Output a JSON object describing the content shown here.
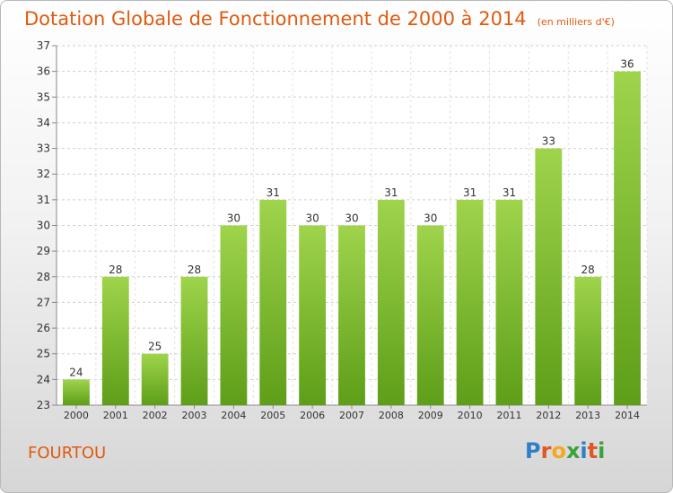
{
  "header": {
    "title": "Dotation Globale de Fonctionnement de 2000 à 2014",
    "unit": "(en milliers d'€)"
  },
  "footer": {
    "place": "FOURTOU",
    "brand": "Proxiti"
  },
  "colors": {
    "title": "#e05a0f",
    "bar_top": "#9fd44c",
    "bar_bottom": "#5e9e18"
  },
  "chart_data": {
    "type": "bar",
    "title": "Dotation Globale de Fonctionnement de 2000 à 2014",
    "ylabel": "(en milliers d'€)",
    "categories": [
      "2000",
      "2001",
      "2002",
      "2003",
      "2004",
      "2005",
      "2006",
      "2007",
      "2008",
      "2009",
      "2010",
      "2011",
      "2012",
      "2013",
      "2014"
    ],
    "values": [
      24,
      28,
      25,
      28,
      30,
      31,
      30,
      30,
      31,
      30,
      31,
      31,
      33,
      28,
      36
    ],
    "ylim": [
      23,
      37
    ],
    "yticks": [
      23,
      24,
      25,
      26,
      27,
      28,
      29,
      30,
      31,
      32,
      33,
      34,
      35,
      36,
      37
    ],
    "grid": true,
    "data_labels": true
  }
}
